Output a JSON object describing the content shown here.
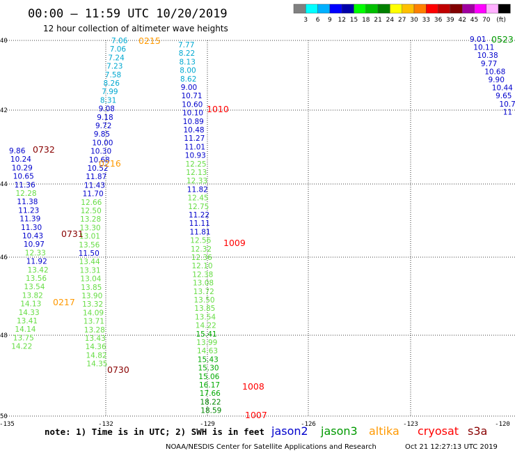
{
  "title": "00:00 – 11:59 UTC 10/20/2019",
  "subtitle": "12 hour collection of altimeter wave heights",
  "legend": {
    "colors": [
      "#808080",
      "#00ffff",
      "#00b0ff",
      "#0000ff",
      "#0000aa",
      "#00ff00",
      "#00c000",
      "#008000",
      "#ffff00",
      "#ffc000",
      "#ff8000",
      "#ff0000",
      "#c00000",
      "#800000",
      "#a000a0",
      "#ff00ff",
      "#ffb0ff",
      "#000000"
    ],
    "labels": [
      "3",
      "6",
      "9",
      "12",
      "15",
      "18",
      "21",
      "24",
      "27",
      "30",
      "33",
      "36",
      "39",
      "42",
      "45",
      "70",
      "(ft)"
    ]
  },
  "note": "note: 1) Time is in UTC; 2) SWH is in feet",
  "satellites": [
    {
      "name": "jason2",
      "color": "#0000cc"
    },
    {
      "name": "jason3",
      "color": "#009900"
    },
    {
      "name": "altika",
      "color": "#ff9900"
    },
    {
      "name": "cryosat",
      "color": "#ff0000"
    },
    {
      "name": "s3a",
      "color": "#880000"
    }
  ],
  "credit": "NOAA/NESDIS Center for Satellite Applications and Research",
  "timestamp": "Oct 21 12:27:13 UTC 2019",
  "axes": {
    "lon_ticks": [
      "-135",
      "-132",
      "-129",
      "-126",
      "-123",
      "-120"
    ],
    "lat_ticks": [
      "40",
      "42",
      "44",
      "46",
      "48",
      "50"
    ]
  },
  "tracks": [
    {
      "id": "track-0215",
      "time": "0215",
      "time_color": "#ff9900",
      "color": "#00a8d0",
      "values": [
        "7.06",
        "7.06",
        "7.24",
        "7.23",
        "7.58",
        "8.26",
        "7.99",
        "8.31",
        "9.08",
        "9.18",
        "9.72",
        "9.85",
        "10.00",
        "10.30",
        "10.68",
        "10.52",
        "11.87",
        "11.43",
        "11.70",
        "12.66",
        "12.50",
        "13.28",
        "13.30",
        "13.01",
        "13.56",
        "11.50",
        "13.44",
        "13.31",
        "13.04",
        "13.85",
        "13.90",
        "13.32",
        "14.09",
        "13.71",
        "13.28",
        "13.43",
        "14.36",
        "14.82",
        "14.35"
      ]
    },
    {
      "id": "track-1010",
      "time": "1010",
      "time_color": "#ff0000",
      "color": "#0000cc",
      "values": [
        "7.77",
        "8.22",
        "8.13",
        "8.00",
        "8.62",
        "9.00",
        "10.71",
        "10.60",
        "10.10",
        "10.89",
        "10.48",
        "11.27",
        "11.01",
        "10.93",
        "12.25",
        "12.13",
        "12.33",
        "11.82",
        "12.45",
        "12.75",
        "11.22",
        "11.11",
        "11.81",
        "12.56",
        "12.32",
        "12.36",
        "12.10",
        "12.38",
        "13.08",
        "13.72",
        "13.50",
        "13.85",
        "13.54",
        "14.22",
        "15.41",
        "13.99",
        "14.63",
        "15.43",
        "15.30",
        "15.06",
        "16.17",
        "17.66",
        "18.22",
        "18.59"
      ]
    },
    {
      "id": "track-0732",
      "time": "0732",
      "time_color": "#880000",
      "color": "#0000aa",
      "values": [
        "9.86",
        "10.24",
        "10.29",
        "10.65",
        "11.36",
        "12.28",
        "11.38",
        "11.23",
        "11.39",
        "11.30",
        "10.43",
        "10.97",
        "12.33",
        "11.92",
        "13.42",
        "13.56",
        "13.54",
        "13.82",
        "14.13",
        "14.33",
        "13.41",
        "14.14",
        "13.75",
        "14.22"
      ]
    },
    {
      "id": "track-0523",
      "time": "0523",
      "time_color": "#009900",
      "color": "#0000aa",
      "values": [
        "9.01",
        "10.11",
        "10.38",
        "9.77",
        "10.68",
        "9.90",
        "10.44",
        "9.65",
        "10.7",
        "11"
      ]
    }
  ],
  "time_labels": [
    {
      "id": "time-0216",
      "text": "0216",
      "color": "#ff9900"
    },
    {
      "id": "time-0731",
      "text": "0731",
      "color": "#880000"
    },
    {
      "id": "time-1009",
      "text": "1009",
      "color": "#ff0000"
    },
    {
      "id": "time-0217",
      "text": "0217",
      "color": "#ff9900"
    },
    {
      "id": "time-0730",
      "text": "0730",
      "color": "#880000"
    },
    {
      "id": "time-1008",
      "text": "1008",
      "color": "#ff0000"
    },
    {
      "id": "time-1007",
      "text": "1007",
      "color": "#ff0000"
    }
  ]
}
